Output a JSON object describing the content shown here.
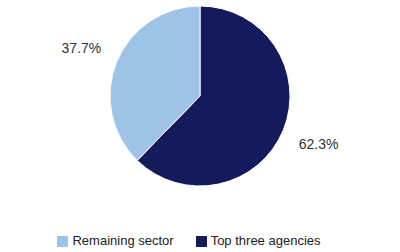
{
  "chart_data": {
    "type": "pie",
    "categories": [
      "Top three agencies",
      "Remaining sector"
    ],
    "values": [
      62.3,
      37.7
    ],
    "value_labels": [
      "62.3%",
      "37.7%"
    ],
    "colors": [
      "#141a5b",
      "#9dc3e6"
    ],
    "data_labels": true,
    "legend": "bottom"
  }
}
